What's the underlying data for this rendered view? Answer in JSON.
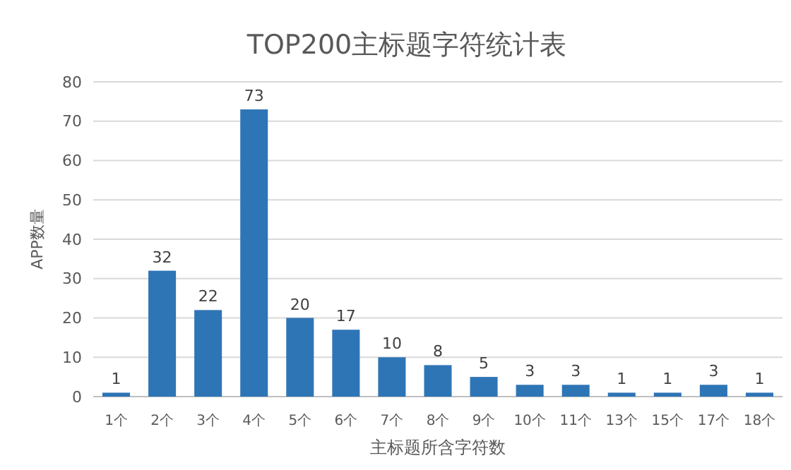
{
  "chart_data": {
    "type": "bar",
    "title": "TOP200主标题字符统计表",
    "xlabel": "主标题所含字符数",
    "ylabel": "APP数量",
    "categories": [
      "1个",
      "2个",
      "3个",
      "4个",
      "5个",
      "6个",
      "7个",
      "8个",
      "9个",
      "10个",
      "11个",
      "13个",
      "15个",
      "17个",
      "18个"
    ],
    "values": [
      1,
      32,
      22,
      73,
      20,
      17,
      10,
      8,
      5,
      3,
      3,
      1,
      1,
      3,
      1
    ],
    "color": "#2e75b6",
    "ylim": [
      0,
      80
    ],
    "yticks": [
      0,
      10,
      20,
      30,
      40,
      50,
      60,
      70,
      80
    ],
    "grid": "y",
    "data_labels": true
  }
}
